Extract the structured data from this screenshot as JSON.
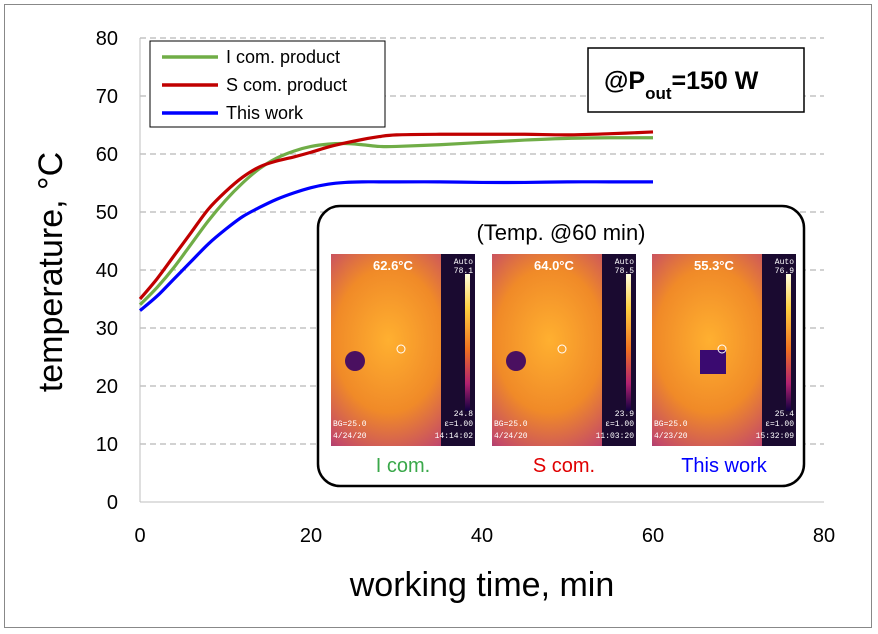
{
  "chart_data": {
    "type": "line",
    "xlabel": "working time, min",
    "ylabel": "temperature, °C",
    "xlim": [
      0,
      80
    ],
    "ylim": [
      0,
      80
    ],
    "xticks": [
      "0",
      "20",
      "40",
      "60",
      "80"
    ],
    "yticks": [
      "0",
      "10",
      "20",
      "30",
      "40",
      "50",
      "60",
      "70",
      "80"
    ],
    "grid": "horizontal dashed",
    "legend_position": "top-left",
    "annotation": {
      "prefix": "@P",
      "subscript": "out",
      "suffix": "=150 W"
    },
    "series": [
      {
        "name": "I com. product",
        "color": "#70ad47",
        "points": [
          [
            0,
            34
          ],
          [
            2,
            37
          ],
          [
            4,
            40.5
          ],
          [
            6,
            44.5
          ],
          [
            8,
            48.5
          ],
          [
            10,
            52
          ],
          [
            12,
            55
          ],
          [
            14,
            57.5
          ],
          [
            16,
            59.3
          ],
          [
            18,
            60.5
          ],
          [
            20,
            61.3
          ],
          [
            22,
            61.7
          ],
          [
            24,
            61.8
          ],
          [
            26,
            61.6
          ],
          [
            28,
            61.3
          ],
          [
            30,
            61.3
          ],
          [
            35,
            61.6
          ],
          [
            40,
            62
          ],
          [
            45,
            62.4
          ],
          [
            50,
            62.7
          ],
          [
            55,
            62.8
          ],
          [
            60,
            62.8
          ]
        ]
      },
      {
        "name": "S com. product",
        "color": "#c00000",
        "points": [
          [
            0,
            35
          ],
          [
            2,
            38.5
          ],
          [
            4,
            42.5
          ],
          [
            6,
            46.5
          ],
          [
            8,
            50.5
          ],
          [
            10,
            53.5
          ],
          [
            12,
            56
          ],
          [
            14,
            57.8
          ],
          [
            16,
            58.8
          ],
          [
            18,
            59.5
          ],
          [
            20,
            60.3
          ],
          [
            22,
            61.2
          ],
          [
            24,
            61.9
          ],
          [
            26,
            62.5
          ],
          [
            28,
            63
          ],
          [
            30,
            63.3
          ],
          [
            35,
            63.4
          ],
          [
            40,
            63.4
          ],
          [
            45,
            63.4
          ],
          [
            50,
            63.3
          ],
          [
            55,
            63.5
          ],
          [
            60,
            63.8
          ]
        ]
      },
      {
        "name": "This work",
        "color": "#0000ff",
        "points": [
          [
            0,
            33
          ],
          [
            2,
            35.5
          ],
          [
            4,
            38.5
          ],
          [
            6,
            41.5
          ],
          [
            8,
            44.5
          ],
          [
            10,
            47
          ],
          [
            12,
            49.2
          ],
          [
            14,
            50.8
          ],
          [
            16,
            52.2
          ],
          [
            18,
            53.3
          ],
          [
            20,
            54.2
          ],
          [
            22,
            54.8
          ],
          [
            24,
            55.1
          ],
          [
            26,
            55.2
          ],
          [
            28,
            55.2
          ],
          [
            30,
            55.2
          ],
          [
            35,
            55.2
          ],
          [
            40,
            55.1
          ],
          [
            45,
            55.1
          ],
          [
            50,
            55.2
          ],
          [
            55,
            55.2
          ],
          [
            60,
            55.2
          ]
        ]
      }
    ],
    "inset": {
      "title": "(Temp. @60 min)",
      "images": [
        {
          "temp": "62.6°C",
          "top_scale": "78.1",
          "bottom_scale": "24.8",
          "auto": "Auto",
          "date": "4/24/20",
          "time": "14:14:02",
          "bg": "BG=25.0",
          "eps": "ε=1.00",
          "label": "I com.",
          "label_color": "#3aa84a"
        },
        {
          "temp": "64.0°C",
          "top_scale": "78.5",
          "bottom_scale": "23.9",
          "auto": "Auto",
          "date": "4/24/20",
          "time": "11:03:20",
          "bg": "BG=25.0",
          "eps": "ε=1.00",
          "label": "S com.",
          "label_color": "#e00000"
        },
        {
          "temp": "55.3°C",
          "top_scale": "76.9",
          "bottom_scale": "25.4",
          "auto": "Auto",
          "date": "4/23/20",
          "time": "15:32:09",
          "bg": "BG=25.0",
          "eps": "ε=1.00",
          "label": "This work",
          "label_color": "#0000ff"
        }
      ]
    }
  }
}
